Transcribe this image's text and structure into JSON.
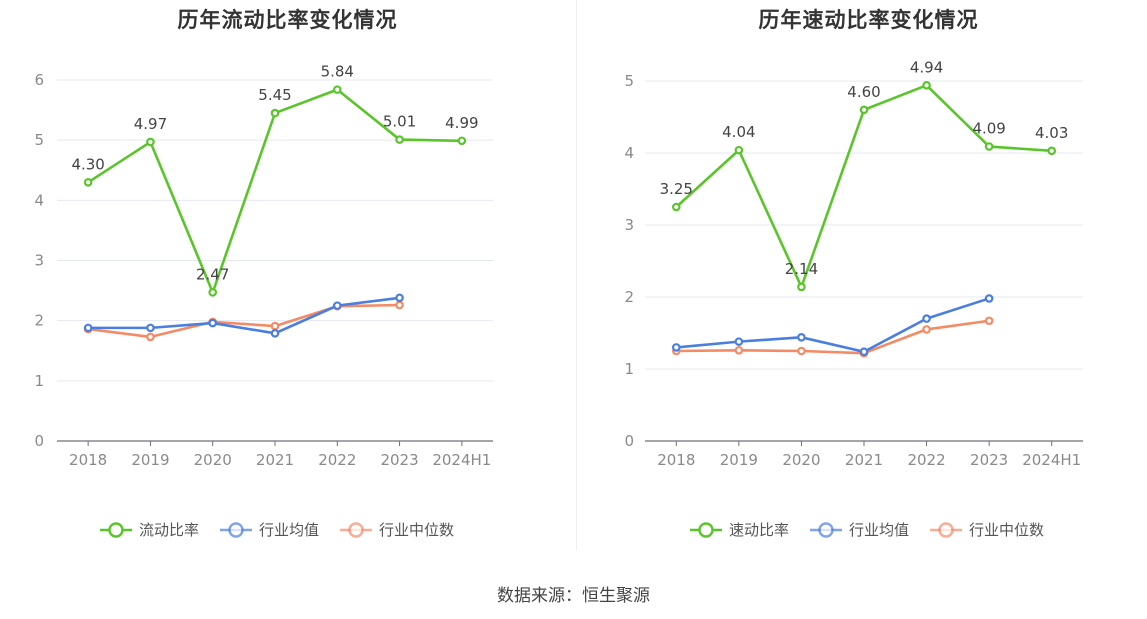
{
  "source": "数据来源：恒生聚源",
  "chart_data": [
    {
      "type": "line",
      "title": "历年流动比率变化情况",
      "categories": [
        "2018",
        "2019",
        "2020",
        "2021",
        "2022",
        "2023",
        "2024H1"
      ],
      "y_ticks": [
        "0",
        "1",
        "2",
        "3",
        "4",
        "5",
        "6"
      ],
      "ylim": [
        0,
        6
      ],
      "grid": true,
      "legend_position": "bottom",
      "series": [
        {
          "name": "流动比率",
          "color": "#5ac52a",
          "values": [
            4.3,
            4.97,
            2.47,
            5.45,
            5.84,
            5.01,
            4.99
          ],
          "labels": [
            "4.30",
            "4.97",
            "2.47",
            "5.45",
            "5.84",
            "5.01",
            "4.99"
          ]
        },
        {
          "name": "行业均值",
          "color": "#4a7ee0",
          "values": [
            1.88,
            1.88,
            1.96,
            1.79,
            2.25,
            2.38,
            null
          ]
        },
        {
          "name": "行业中位数",
          "color": "#f48a66",
          "values": [
            1.86,
            1.73,
            1.98,
            1.91,
            2.24,
            2.26,
            null
          ]
        }
      ]
    },
    {
      "type": "line",
      "title": "历年速动比率变化情况",
      "categories": [
        "2018",
        "2019",
        "2020",
        "2021",
        "2022",
        "2023",
        "2024H1"
      ],
      "y_ticks": [
        "0",
        "1",
        "2",
        "3",
        "4",
        "5"
      ],
      "ylim": [
        0,
        5
      ],
      "grid": true,
      "legend_position": "bottom",
      "series": [
        {
          "name": "速动比率",
          "color": "#5ac52a",
          "values": [
            3.25,
            4.04,
            2.14,
            4.6,
            4.94,
            4.09,
            4.03
          ],
          "labels": [
            "3.25",
            "4.04",
            "2.14",
            "4.60",
            "4.94",
            "4.09",
            "4.03"
          ]
        },
        {
          "name": "行业均值",
          "color": "#4a7ee0",
          "values": [
            1.3,
            1.38,
            1.44,
            1.24,
            1.7,
            1.98,
            null
          ]
        },
        {
          "name": "行业中位数",
          "color": "#f48a66",
          "values": [
            1.25,
            1.26,
            1.25,
            1.22,
            1.55,
            1.67,
            null
          ]
        }
      ]
    }
  ]
}
